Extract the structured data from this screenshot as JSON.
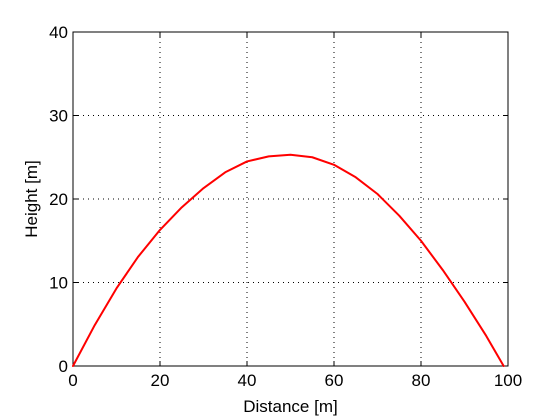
{
  "chart_data": {
    "type": "line",
    "title": "",
    "xlabel": "Distance [m]",
    "ylabel": "Height [m]",
    "xlim": [
      0,
      100
    ],
    "ylim": [
      0,
      40
    ],
    "xticks": [
      0,
      20,
      40,
      60,
      80,
      100
    ],
    "yticks": [
      0,
      10,
      20,
      30,
      40
    ],
    "grid": true,
    "series": [
      {
        "color": "#ff0000",
        "x": [
          0,
          5,
          10,
          15,
          20,
          25,
          30,
          35,
          40,
          45,
          50,
          55,
          60,
          65,
          70,
          75,
          80,
          85,
          90,
          95,
          99
        ],
        "y": [
          0,
          4.9,
          9.3,
          13.1,
          16.3,
          19.0,
          21.3,
          23.2,
          24.5,
          25.1,
          25.3,
          25.0,
          24.1,
          22.6,
          20.6,
          18.0,
          15.0,
          11.5,
          7.7,
          3.6,
          0
        ]
      }
    ]
  }
}
